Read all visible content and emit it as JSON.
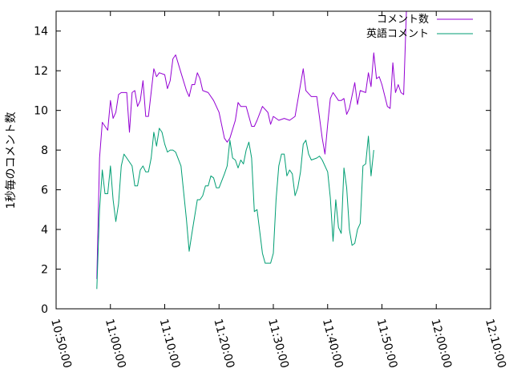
{
  "chart_data": {
    "type": "line",
    "title": "",
    "xlabel": "",
    "ylabel": "1秒毎のコメント数",
    "xlim": [
      "10:50:00",
      "12:10:00"
    ],
    "ylim": [
      0,
      15
    ],
    "x_ticks": [
      "10:50:00",
      "11:00:00",
      "11:10:00",
      "11:20:00",
      "11:30:00",
      "11:40:00",
      "11:50:00",
      "12:00:00",
      "12:10:00"
    ],
    "y_ticks": [
      0,
      2,
      4,
      6,
      8,
      10,
      12,
      14
    ],
    "legend_position": "top-right",
    "series": [
      {
        "name": "コメント数",
        "color": "#9400d3",
        "points": [
          [
            "10:57:30",
            1.5
          ],
          [
            "10:58:00",
            7.6
          ],
          [
            "10:58:30",
            9.4
          ],
          [
            "10:59:30",
            9.0
          ],
          [
            "11:00:00",
            10.5
          ],
          [
            "11:00:30",
            9.6
          ],
          [
            "11:01:00",
            9.9
          ],
          [
            "11:01:30",
            10.8
          ],
          [
            "11:02:00",
            10.9
          ],
          [
            "11:03:00",
            10.9
          ],
          [
            "11:03:30",
            8.9
          ],
          [
            "11:04:00",
            10.9
          ],
          [
            "11:04:30",
            11.0
          ],
          [
            "11:05:00",
            10.2
          ],
          [
            "11:05:30",
            10.5
          ],
          [
            "11:06:00",
            11.5
          ],
          [
            "11:06:30",
            9.7
          ],
          [
            "11:07:00",
            9.7
          ],
          [
            "11:08:00",
            12.1
          ],
          [
            "11:08:30",
            11.7
          ],
          [
            "11:09:00",
            11.9
          ],
          [
            "11:10:00",
            11.8
          ],
          [
            "11:10:30",
            11.1
          ],
          [
            "11:11:00",
            11.5
          ],
          [
            "11:11:30",
            12.6
          ],
          [
            "11:12:00",
            12.8
          ],
          [
            "11:13:00",
            11.9
          ],
          [
            "11:14:00",
            11.0
          ],
          [
            "11:14:30",
            10.7
          ],
          [
            "11:15:00",
            11.3
          ],
          [
            "11:15:30",
            11.3
          ],
          [
            "11:16:00",
            11.9
          ],
          [
            "11:16:30",
            11.6
          ],
          [
            "11:17:00",
            11.0
          ],
          [
            "11:18:00",
            10.9
          ],
          [
            "11:19:00",
            10.5
          ],
          [
            "11:20:00",
            9.9
          ],
          [
            "11:21:00",
            8.6
          ],
          [
            "11:21:30",
            8.4
          ],
          [
            "11:22:00",
            8.6
          ],
          [
            "11:23:00",
            9.5
          ],
          [
            "11:23:30",
            10.4
          ],
          [
            "11:24:00",
            10.2
          ],
          [
            "11:25:00",
            10.2
          ],
          [
            "11:26:00",
            9.2
          ],
          [
            "11:26:30",
            9.2
          ],
          [
            "11:27:00",
            9.5
          ],
          [
            "11:28:00",
            10.2
          ],
          [
            "11:29:00",
            9.9
          ],
          [
            "11:29:30",
            9.3
          ],
          [
            "11:30:00",
            9.7
          ],
          [
            "11:31:00",
            9.5
          ],
          [
            "11:32:00",
            9.6
          ],
          [
            "11:33:00",
            9.5
          ],
          [
            "11:34:00",
            9.7
          ],
          [
            "11:35:00",
            11.3
          ],
          [
            "11:35:30",
            12.1
          ],
          [
            "11:36:00",
            11.0
          ],
          [
            "11:37:00",
            10.7
          ],
          [
            "11:38:00",
            10.7
          ],
          [
            "11:39:00",
            8.6
          ],
          [
            "11:39:30",
            7.8
          ],
          [
            "11:40:00",
            9.3
          ],
          [
            "11:40:30",
            10.6
          ],
          [
            "11:41:00",
            10.9
          ],
          [
            "11:42:00",
            10.5
          ],
          [
            "11:42:30",
            10.5
          ],
          [
            "11:43:00",
            10.6
          ],
          [
            "11:43:30",
            9.8
          ],
          [
            "11:44:00",
            10.1
          ],
          [
            "11:45:00",
            11.4
          ],
          [
            "11:45:30",
            10.3
          ],
          [
            "11:46:00",
            11.0
          ],
          [
            "11:47:00",
            10.9
          ],
          [
            "11:47:30",
            11.9
          ],
          [
            "11:48:00",
            11.2
          ],
          [
            "11:48:30",
            12.9
          ],
          [
            "11:49:00",
            11.6
          ],
          [
            "11:49:30",
            11.7
          ],
          [
            "11:50:00",
            11.3
          ],
          [
            "11:51:00",
            10.2
          ],
          [
            "11:51:30",
            10.1
          ],
          [
            "11:52:00",
            12.4
          ],
          [
            "11:52:30",
            10.9
          ],
          [
            "11:53:00",
            11.3
          ],
          [
            "11:53:30",
            10.9
          ],
          [
            "11:54:00",
            10.8
          ],
          [
            "11:54:30",
            15.0
          ]
        ]
      },
      {
        "name": "英語コメント",
        "color": "#009e73",
        "points": [
          [
            "10:57:30",
            1.0
          ],
          [
            "10:58:00",
            5.0
          ],
          [
            "10:58:30",
            7.0
          ],
          [
            "10:59:00",
            5.8
          ],
          [
            "10:59:30",
            5.8
          ],
          [
            "11:00:00",
            7.2
          ],
          [
            "11:00:30",
            5.5
          ],
          [
            "11:01:00",
            4.4
          ],
          [
            "11:01:30",
            5.3
          ],
          [
            "11:02:00",
            7.2
          ],
          [
            "11:02:30",
            7.8
          ],
          [
            "11:03:00",
            7.6
          ],
          [
            "11:04:00",
            7.2
          ],
          [
            "11:04:30",
            6.2
          ],
          [
            "11:05:00",
            6.2
          ],
          [
            "11:05:30",
            7.0
          ],
          [
            "11:06:00",
            7.2
          ],
          [
            "11:06:30",
            6.9
          ],
          [
            "11:07:00",
            6.9
          ],
          [
            "11:07:30",
            7.6
          ],
          [
            "11:08:00",
            8.9
          ],
          [
            "11:08:30",
            8.2
          ],
          [
            "11:09:00",
            9.1
          ],
          [
            "11:09:30",
            8.9
          ],
          [
            "11:10:00",
            8.3
          ],
          [
            "11:10:30",
            7.9
          ],
          [
            "11:11:00",
            8.0
          ],
          [
            "11:11:30",
            8.0
          ],
          [
            "11:12:00",
            7.9
          ],
          [
            "11:13:00",
            7.2
          ],
          [
            "11:14:00",
            4.5
          ],
          [
            "11:14:30",
            2.9
          ],
          [
            "11:15:00",
            3.8
          ],
          [
            "11:16:00",
            5.5
          ],
          [
            "11:16:30",
            5.5
          ],
          [
            "11:17:00",
            5.7
          ],
          [
            "11:17:30",
            6.2
          ],
          [
            "11:18:00",
            6.2
          ],
          [
            "11:18:30",
            6.7
          ],
          [
            "11:19:00",
            6.6
          ],
          [
            "11:19:30",
            6.1
          ],
          [
            "11:20:00",
            6.1
          ],
          [
            "11:21:00",
            6.8
          ],
          [
            "11:21:30",
            7.2
          ],
          [
            "11:22:00",
            8.5
          ],
          [
            "11:22:30",
            7.6
          ],
          [
            "11:23:00",
            7.5
          ],
          [
            "11:23:30",
            7.1
          ],
          [
            "11:24:00",
            7.5
          ],
          [
            "11:24:30",
            7.3
          ],
          [
            "11:25:00",
            8.0
          ],
          [
            "11:25:30",
            8.4
          ],
          [
            "11:26:00",
            7.6
          ],
          [
            "11:26:30",
            4.9
          ],
          [
            "11:27:00",
            5.0
          ],
          [
            "11:28:00",
            2.8
          ],
          [
            "11:28:30",
            2.3
          ],
          [
            "11:29:30",
            2.3
          ],
          [
            "11:30:00",
            2.8
          ],
          [
            "11:30:30",
            5.5
          ],
          [
            "11:31:00",
            7.2
          ],
          [
            "11:31:30",
            7.8
          ],
          [
            "11:32:00",
            7.8
          ],
          [
            "11:32:30",
            6.7
          ],
          [
            "11:33:00",
            7.0
          ],
          [
            "11:33:30",
            6.8
          ],
          [
            "11:34:00",
            5.7
          ],
          [
            "11:34:30",
            6.1
          ],
          [
            "11:35:00",
            6.9
          ],
          [
            "11:35:30",
            8.3
          ],
          [
            "11:36:00",
            8.5
          ],
          [
            "11:36:30",
            7.8
          ],
          [
            "11:37:00",
            7.5
          ],
          [
            "11:38:00",
            7.6
          ],
          [
            "11:38:30",
            7.7
          ],
          [
            "11:39:00",
            7.5
          ],
          [
            "11:40:00",
            6.9
          ],
          [
            "11:40:30",
            5.6
          ],
          [
            "11:41:00",
            3.4
          ],
          [
            "11:41:30",
            5.5
          ],
          [
            "11:42:00",
            4.1
          ],
          [
            "11:42:30",
            3.8
          ],
          [
            "11:43:00",
            7.1
          ],
          [
            "11:43:30",
            6.1
          ],
          [
            "11:44:00",
            4.0
          ],
          [
            "11:44:30",
            3.2
          ],
          [
            "11:45:00",
            3.3
          ],
          [
            "11:45:30",
            4.0
          ],
          [
            "11:46:00",
            4.3
          ],
          [
            "11:46:30",
            7.2
          ],
          [
            "11:47:00",
            7.3
          ],
          [
            "11:47:30",
            8.7
          ],
          [
            "11:48:00",
            6.7
          ],
          [
            "11:48:30",
            8.0
          ]
        ]
      }
    ]
  }
}
